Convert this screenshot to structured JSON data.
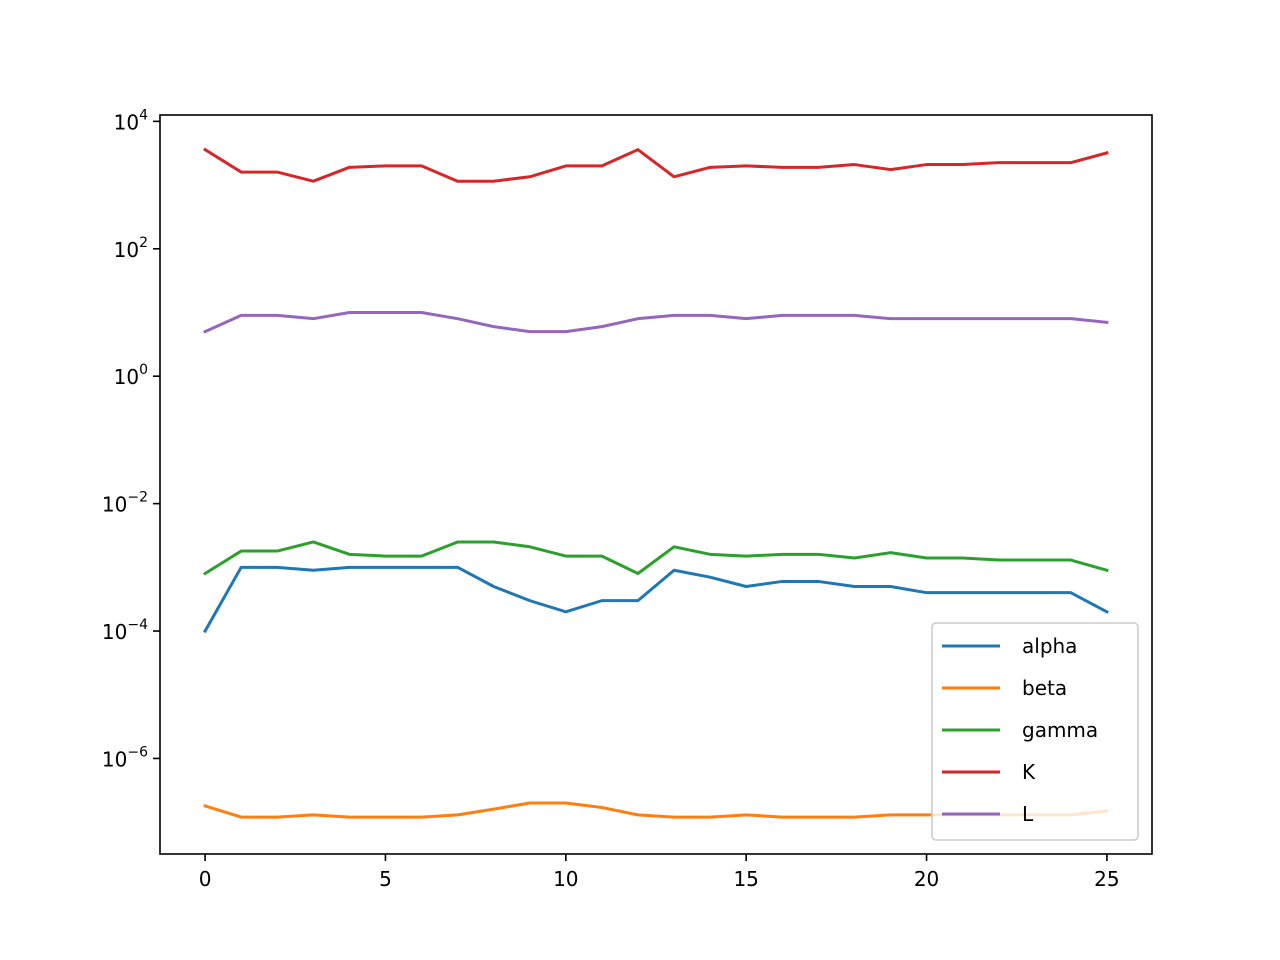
{
  "chart_data": {
    "type": "line",
    "title": "",
    "xlabel": "",
    "ylabel": "",
    "yscale": "log",
    "xlim": [
      -1.25,
      26.25
    ],
    "ylim_log10": [
      -7.5,
      4.1
    ],
    "grid": false,
    "legend_position": "lower-right",
    "x_ticks": [
      0,
      5,
      10,
      15,
      20,
      25
    ],
    "x_tick_labels": [
      "0",
      "5",
      "10",
      "15",
      "20",
      "25"
    ],
    "y_ticks_log10": [
      -6,
      -4,
      -2,
      0,
      2,
      4
    ],
    "y_tick_base": "10",
    "y_tick_exponents": [
      "−6",
      "−4",
      "−2",
      "0",
      "2",
      "4"
    ],
    "x": [
      0,
      1,
      2,
      3,
      4,
      5,
      6,
      7,
      8,
      9,
      10,
      11,
      12,
      13,
      14,
      15,
      16,
      17,
      18,
      19,
      20,
      21,
      22,
      23,
      24,
      25
    ],
    "series": [
      {
        "name": "alpha",
        "color": "#1f77b4",
        "values": [
          0.0001,
          0.001,
          0.001,
          0.0009,
          0.001,
          0.001,
          0.001,
          0.001,
          0.0005,
          0.0003,
          0.0002,
          0.0003,
          0.0003,
          0.0009,
          0.0007,
          0.0005,
          0.0006,
          0.0006,
          0.0005,
          0.0005,
          0.0004,
          0.0004,
          0.0004,
          0.0004,
          0.0004,
          0.0002
        ]
      },
      {
        "name": "beta",
        "color": "#ff7f0e",
        "values": [
          1.8e-07,
          1.2e-07,
          1.2e-07,
          1.3e-07,
          1.2e-07,
          1.2e-07,
          1.2e-07,
          1.3e-07,
          1.6e-07,
          2e-07,
          2e-07,
          1.7e-07,
          1.3e-07,
          1.2e-07,
          1.2e-07,
          1.3e-07,
          1.2e-07,
          1.2e-07,
          1.2e-07,
          1.3e-07,
          1.3e-07,
          1.3e-07,
          1.3e-07,
          1.3e-07,
          1.3e-07,
          1.5e-07
        ]
      },
      {
        "name": "gamma",
        "color": "#2ca02c",
        "values": [
          0.0008,
          0.0018,
          0.0018,
          0.0025,
          0.0016,
          0.0015,
          0.0015,
          0.0025,
          0.0025,
          0.0021,
          0.0015,
          0.0015,
          0.0008,
          0.0021,
          0.0016,
          0.0015,
          0.0016,
          0.0016,
          0.0014,
          0.0017,
          0.0014,
          0.0014,
          0.0013,
          0.0013,
          0.0013,
          0.0009
        ]
      },
      {
        "name": "K",
        "color": "#d62728",
        "values": [
          3600,
          1600,
          1600,
          1150,
          1900,
          2000,
          2000,
          1150,
          1150,
          1350,
          2000,
          2000,
          3600,
          1350,
          1900,
          2000,
          1900,
          1900,
          2100,
          1750,
          2100,
          2100,
          2250,
          2250,
          2250,
          3200
        ]
      },
      {
        "name": "L",
        "color": "#9467bd",
        "values": [
          5,
          9,
          9,
          8,
          10,
          10,
          10,
          8,
          6,
          5,
          5,
          6,
          8,
          9,
          9,
          8,
          9,
          9,
          9,
          8,
          8,
          8,
          8,
          8,
          8,
          7
        ]
      }
    ]
  }
}
